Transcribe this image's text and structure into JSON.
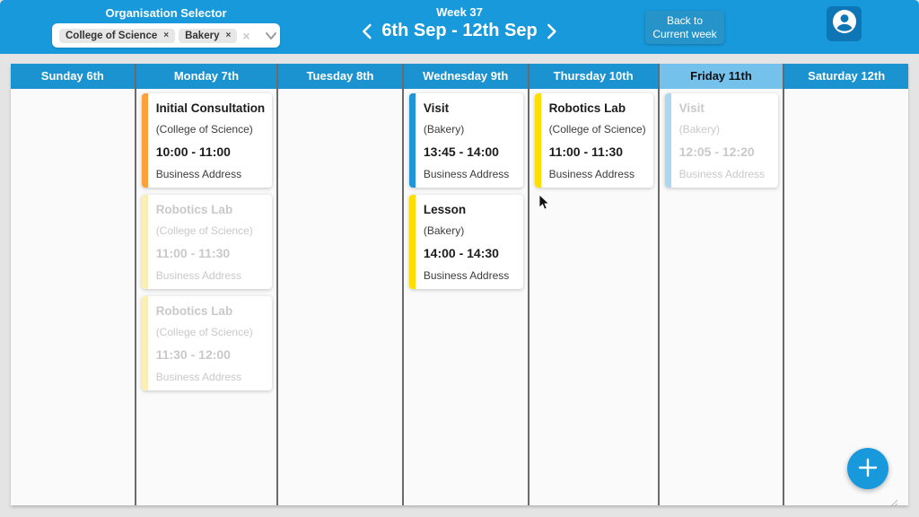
{
  "topbar": {
    "org_selector_label": "Organisation Selector",
    "org_tags": [
      "College of Science",
      "Bakery"
    ],
    "tag_remove_icon": "×",
    "clear_icon": "×",
    "week_label": "Week 37",
    "date_range": "6th Sep - 12th Sep",
    "back_button": {
      "line1": "Back to",
      "line2": "Current week"
    }
  },
  "calendar": {
    "days": [
      {
        "header": "Sunday 6th",
        "current": false,
        "events": []
      },
      {
        "header": "Monday 7th",
        "current": false,
        "events": [
          {
            "title": "Initial Consultation",
            "org": "(College of Science)",
            "time": "10:00 - 11:00",
            "address": "Business Address",
            "bar_color": "#F9A23B",
            "muted": false
          },
          {
            "title": "Robotics Lab",
            "org": "(College of Science)",
            "time": "11:00 - 11:30",
            "address": "Business Address",
            "bar_color": "#FAF0B5",
            "muted": true
          },
          {
            "title": "Robotics Lab",
            "org": "(College of Science)",
            "time": "11:30 - 12:00",
            "address": "Business Address",
            "bar_color": "#FAF0B5",
            "muted": true
          }
        ]
      },
      {
        "header": "Tuesday 8th",
        "current": false,
        "events": []
      },
      {
        "header": "Wednesday 9th",
        "current": false,
        "events": [
          {
            "title": "Visit",
            "org": "(Bakery)",
            "time": "13:45 - 14:00",
            "address": "Business Address",
            "bar_color": "#1E96D7",
            "muted": false
          },
          {
            "title": "Lesson",
            "org": "(Bakery)",
            "time": "14:00 - 14:30",
            "address": "Business Address",
            "bar_color": "#FFDD00",
            "muted": false
          }
        ]
      },
      {
        "header": "Thursday 10th",
        "current": false,
        "events": [
          {
            "title": "Robotics Lab",
            "org": "(College of Science)",
            "time": "11:00 - 11:30",
            "address": "Business Address",
            "bar_color": "#FFDD00",
            "muted": false
          }
        ]
      },
      {
        "header": "Friday 11th",
        "current": true,
        "events": [
          {
            "title": "Visit",
            "org": "(Bakery)",
            "time": "12:05 - 12:20",
            "address": "Business Address",
            "bar_color": "#ABD7EF",
            "muted": true
          }
        ]
      },
      {
        "header": "Saturday 12th",
        "current": false,
        "events": []
      }
    ]
  },
  "fab": {
    "label": "+"
  },
  "colors": {
    "topbar_blue": "#1899DC",
    "day_header_blue": "#1A93D0",
    "current_day_blue": "#74C2EC",
    "back_button_blue": "#2694C8",
    "avatar_blue": "#0E76B4",
    "muted_text": "#C9C9C9"
  }
}
